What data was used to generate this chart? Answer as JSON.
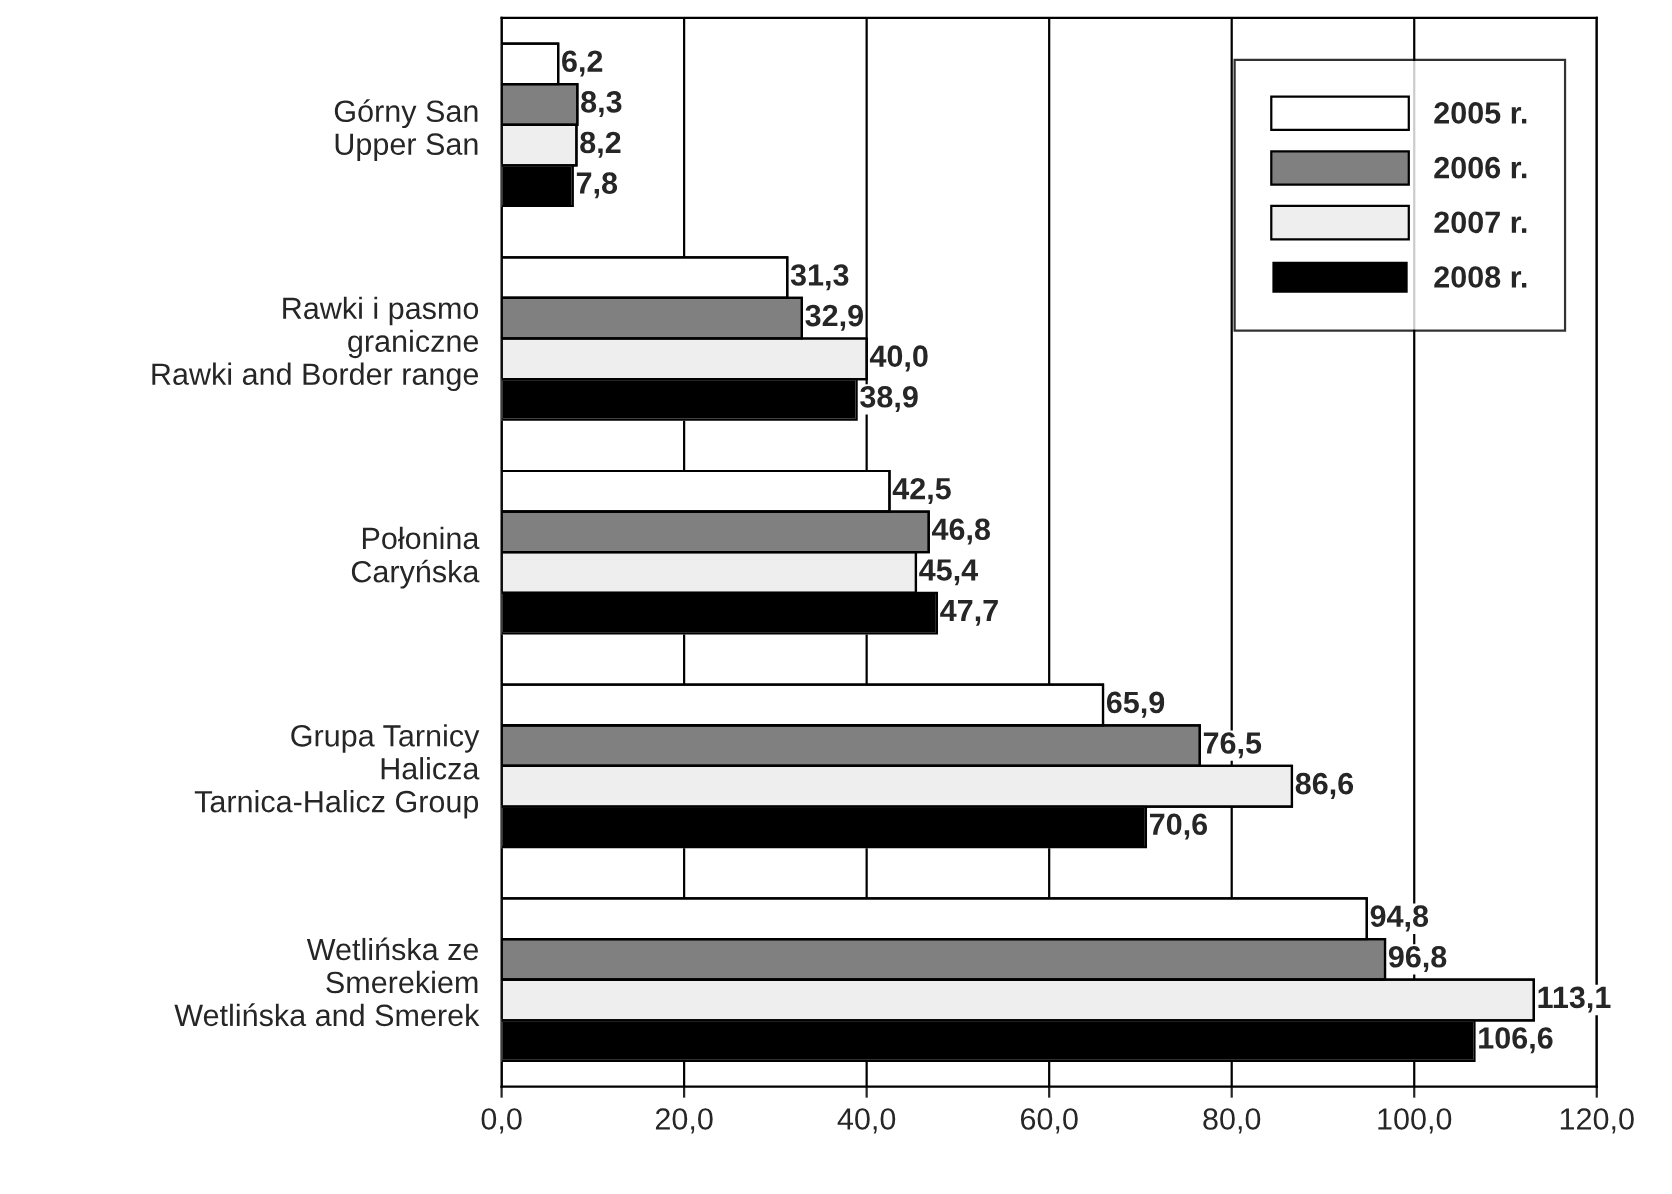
{
  "chart_data": {
    "type": "bar",
    "orientation": "horizontal",
    "categories": [
      "Górny San\nUpper San",
      "Rawki i pasmo\ngraniczne\nRawki and Border range",
      "Połonina\nCaryńska",
      "Grupa Tarnicy\nHalicza\nTarnica-Halicz Group",
      "Wetlińska ze\nSmerekiem\nWetlińska and Smerek"
    ],
    "series": [
      {
        "name": "2005 r.",
        "color": "#ffffff",
        "values": [
          6.2,
          31.3,
          42.5,
          65.9,
          94.8
        ],
        "value_labels": [
          "6,2",
          "31,3",
          "42,5",
          "65,9",
          "94,8"
        ]
      },
      {
        "name": "2006 r.",
        "color": "#808080",
        "values": [
          8.3,
          32.9,
          46.8,
          76.5,
          96.8
        ],
        "value_labels": [
          "8,3",
          "32,9",
          "46,8",
          "76,5",
          "96,8"
        ]
      },
      {
        "name": "2007 r.",
        "color": "#eeeeee",
        "values": [
          8.2,
          40.0,
          45.4,
          86.6,
          113.1
        ],
        "value_labels": [
          "8,2",
          "40,0",
          "45,4",
          "86,6",
          "113,1"
        ]
      },
      {
        "name": "2008 r.",
        "color": "#000000",
        "values": [
          7.8,
          38.9,
          47.7,
          70.6,
          106.6
        ],
        "value_labels": [
          "7,8",
          "38,9",
          "47,7",
          "70,6",
          "106,6"
        ]
      }
    ],
    "xlim": [
      0,
      120
    ],
    "xticks": [
      {
        "value": 0,
        "label": "0,0"
      },
      {
        "value": 20,
        "label": "20,0"
      },
      {
        "value": 40,
        "label": "40,0"
      },
      {
        "value": 60,
        "label": "60,0"
      },
      {
        "value": 80,
        "label": "80,0"
      },
      {
        "value": 100,
        "label": "100,0"
      },
      {
        "value": 120,
        "label": "120,0"
      }
    ],
    "grid": "x",
    "legend": "top right"
  }
}
